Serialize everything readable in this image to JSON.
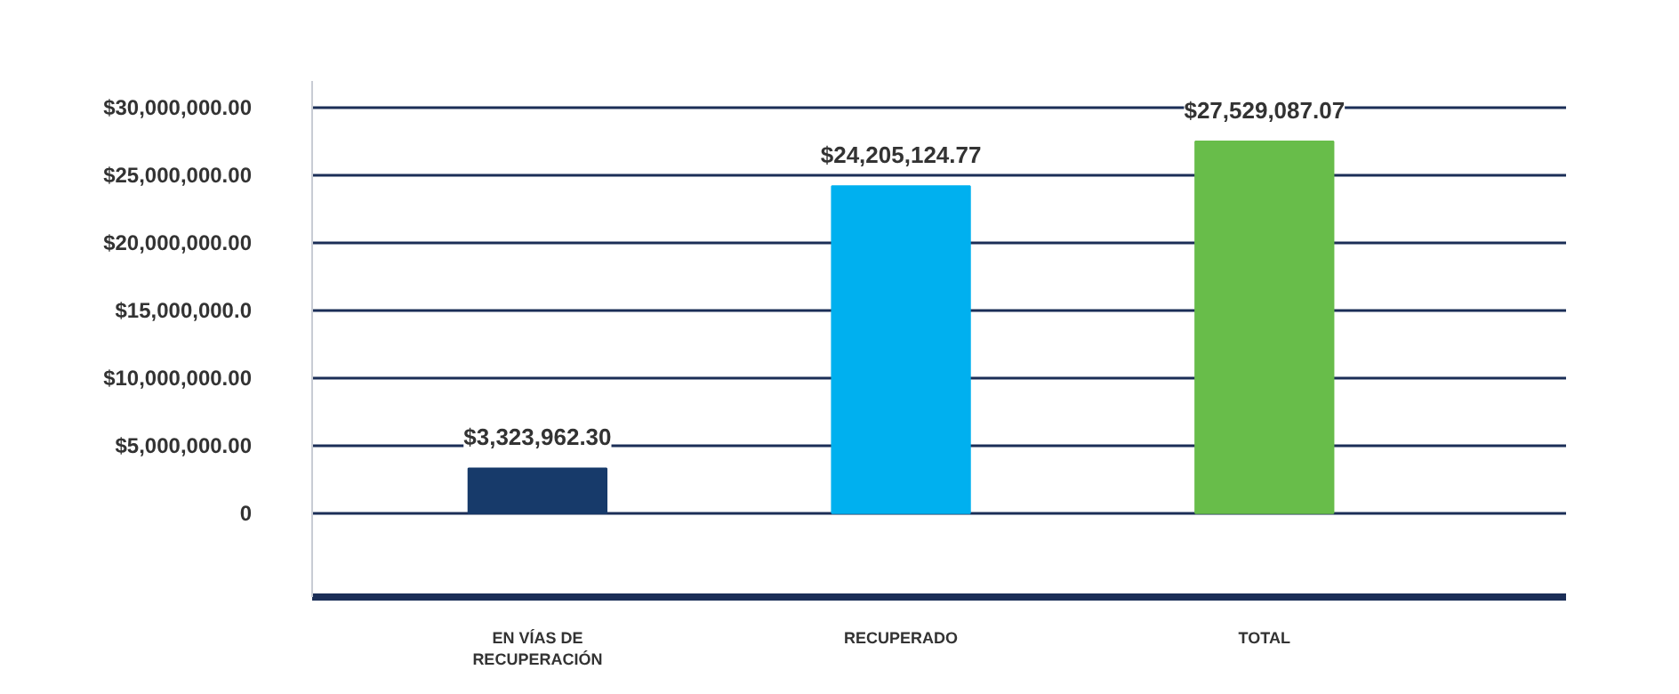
{
  "chart_data": {
    "type": "bar",
    "categories": [
      "EN VÍAS DE\nRECUPERACIÓN",
      "RECUPERADO",
      "TOTAL"
    ],
    "values": [
      3323962.3,
      24205124.77,
      27529087.07
    ],
    "colors": [
      "#173a6a",
      "#00b0ef",
      "#68bd4a"
    ],
    "value_labels": [
      "$3,323,962.30",
      "$24,205,124.77",
      "$27,529,087.07"
    ],
    "ylim": [
      -6200000,
      32000000
    ],
    "yticks": [
      {
        "value": 0,
        "label": "0"
      },
      {
        "value": 5000000,
        "label": "$5,000,000.00"
      },
      {
        "value": 10000000,
        "label": "$10,000,000.00"
      },
      {
        "value": 15000000,
        "label": "$15,000,000.0"
      },
      {
        "value": 20000000,
        "label": "$20,000,000.00"
      },
      {
        "value": 25000000,
        "label": "$25,000,000.00"
      },
      {
        "value": 30000000,
        "label": "$30,000,000.00"
      }
    ],
    "grid": "y"
  }
}
